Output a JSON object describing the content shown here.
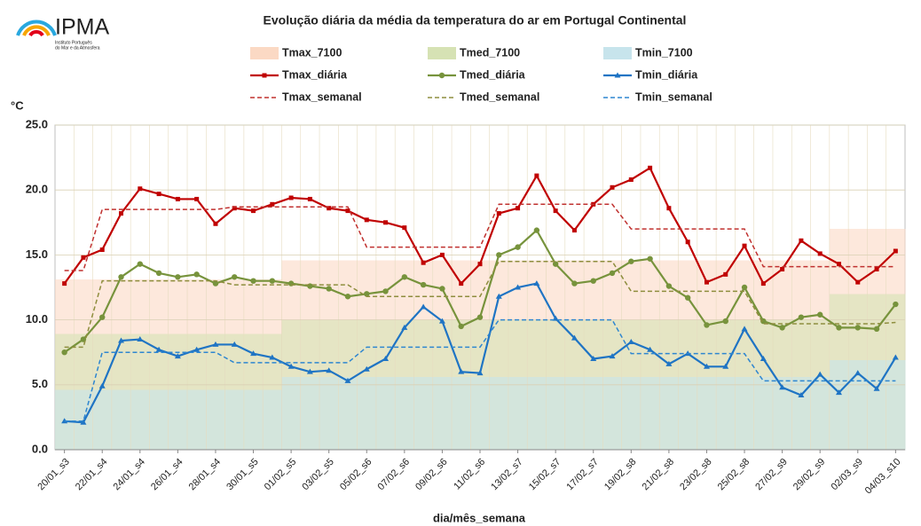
{
  "logo": {
    "name": "IPMA",
    "subtitle_1": "Instituto Português",
    "subtitle_2": "do Mar e da Atmosfera"
  },
  "chart_data": {
    "type": "line",
    "title": "Evolução diária da média da temperatura do ar em Portugal Continental",
    "y_label": "°C",
    "x_label": "dia/mês_semana",
    "categories": [
      "20/01_s3",
      null,
      "22/01_s4",
      null,
      "24/01_s4",
      null,
      "26/01_s4",
      null,
      "28/01_s4",
      null,
      "30/01_s5",
      null,
      "01/02_s5",
      null,
      "03/02_s5",
      null,
      "05/02_s6",
      null,
      "07/02_s6",
      null,
      "09/02_s6",
      null,
      "11/02_s6",
      null,
      "13/02_s7",
      null,
      "15/02_s7",
      null,
      "17/02_s7",
      null,
      "19/02_s8",
      null,
      "21/02_s8",
      null,
      "23/02_s8",
      null,
      "25/02_s8",
      null,
      "27/02_s9",
      null,
      "29/02_s9",
      null,
      "02/03_s9",
      null,
      "04/03_s10"
    ],
    "ylim": [
      0,
      25
    ],
    "yticks": [
      {
        "value": 0,
        "label": "0.0"
      },
      {
        "value": 5,
        "label": "5.0"
      },
      {
        "value": 10,
        "label": "10.0"
      },
      {
        "value": 15,
        "label": "15.0"
      },
      {
        "value": 20,
        "label": "20.0"
      },
      {
        "value": 25,
        "label": "25.0"
      }
    ],
    "grid": true,
    "series": [
      {
        "name": "Tmax_7100",
        "style": "band",
        "color": "#fbd9c4",
        "values": [
          13.1,
          13.1,
          13.1,
          13.1,
          13.1,
          13.1,
          13.1,
          13.1,
          13.1,
          13.1,
          13.1,
          13.1,
          14.6,
          14.6,
          14.6,
          14.6,
          14.6,
          14.6,
          14.6,
          14.6,
          14.6,
          14.6,
          14.6,
          14.6,
          14.6,
          14.6,
          14.6,
          14.6,
          14.6,
          14.6,
          14.6,
          14.6,
          14.6,
          14.6,
          14.6,
          14.6,
          14.6,
          14.6,
          14.6,
          14.6,
          14.6,
          17.0,
          17.0,
          17.0,
          17.0
        ]
      },
      {
        "name": "Tmed_7100",
        "style": "band",
        "color": "#d6e2b4",
        "values": [
          8.9,
          8.9,
          8.9,
          8.9,
          8.9,
          8.9,
          8.9,
          8.9,
          8.9,
          8.9,
          8.9,
          8.9,
          10.0,
          10.0,
          10.0,
          10.0,
          10.0,
          10.0,
          10.0,
          10.0,
          10.0,
          10.0,
          10.0,
          10.0,
          10.0,
          10.0,
          10.0,
          10.0,
          10.0,
          10.0,
          10.0,
          10.0,
          10.0,
          10.0,
          10.0,
          10.0,
          10.0,
          10.0,
          10.0,
          10.0,
          10.0,
          12.0,
          12.0,
          12.0,
          12.0
        ]
      },
      {
        "name": "Tmin_7100",
        "style": "band",
        "color": "#c7e4ec",
        "values": [
          4.6,
          4.6,
          4.6,
          4.6,
          4.6,
          4.6,
          4.6,
          4.6,
          4.6,
          4.6,
          4.6,
          4.6,
          5.6,
          5.6,
          5.6,
          5.6,
          5.6,
          5.6,
          5.6,
          5.6,
          5.6,
          5.6,
          5.6,
          5.6,
          5.6,
          5.6,
          5.6,
          5.6,
          5.6,
          5.6,
          5.6,
          5.6,
          5.6,
          5.6,
          5.6,
          5.6,
          5.6,
          5.6,
          5.6,
          5.6,
          5.6,
          6.9,
          6.9,
          6.9,
          6.9
        ]
      },
      {
        "name": "Tmax_diária",
        "style": "line",
        "marker": "square",
        "color": "#c00000",
        "values": [
          12.8,
          14.8,
          15.4,
          18.2,
          20.1,
          19.7,
          19.3,
          19.3,
          17.4,
          18.6,
          18.4,
          18.9,
          19.4,
          19.3,
          18.6,
          18.4,
          17.7,
          17.5,
          17.1,
          14.4,
          15.0,
          12.8,
          14.3,
          18.2,
          18.6,
          21.1,
          18.4,
          16.9,
          18.9,
          20.2,
          20.8,
          21.7,
          18.6,
          16.0,
          12.9,
          13.5,
          15.7,
          12.8,
          13.9,
          16.1,
          15.1,
          14.3,
          12.9,
          13.9,
          15.3
        ]
      },
      {
        "name": "Tmed_diária",
        "style": "line",
        "marker": "circle",
        "color": "#77933c",
        "values": [
          7.5,
          8.5,
          10.2,
          13.3,
          14.3,
          13.6,
          13.3,
          13.5,
          12.8,
          13.3,
          13.0,
          13.0,
          12.8,
          12.6,
          12.4,
          11.8,
          12.0,
          12.2,
          13.3,
          12.7,
          12.4,
          9.5,
          10.2,
          15.0,
          15.6,
          16.9,
          14.3,
          12.8,
          13.0,
          13.6,
          14.5,
          14.7,
          12.6,
          11.7,
          9.6,
          9.9,
          12.5,
          9.9,
          9.4,
          10.2,
          10.4,
          9.4,
          9.4,
          9.3,
          11.2
        ]
      },
      {
        "name": "Tmin_diária",
        "style": "line",
        "marker": "triangle",
        "color": "#1f74c4",
        "values": [
          2.2,
          2.1,
          4.9,
          8.4,
          8.5,
          7.7,
          7.2,
          7.7,
          8.1,
          8.1,
          7.4,
          7.1,
          6.4,
          6.0,
          6.1,
          5.3,
          6.2,
          7.0,
          9.4,
          11.0,
          9.9,
          6.0,
          5.9,
          11.8,
          12.5,
          12.8,
          10.1,
          8.6,
          7.0,
          7.2,
          8.3,
          7.7,
          6.6,
          7.4,
          6.4,
          6.4,
          9.3,
          7.0,
          4.8,
          4.2,
          5.8,
          4.4,
          5.9,
          4.7,
          7.1
        ]
      },
      {
        "name": "Tmax_semanal",
        "style": "dashed",
        "color": "#c0312f",
        "values": [
          13.8,
          13.8,
          18.5,
          18.5,
          18.5,
          18.5,
          18.5,
          18.5,
          18.5,
          18.7,
          18.7,
          18.7,
          18.7,
          18.7,
          18.7,
          18.7,
          15.6,
          15.6,
          15.6,
          15.6,
          15.6,
          15.6,
          15.6,
          18.9,
          18.9,
          18.9,
          18.9,
          18.9,
          18.9,
          18.9,
          17.0,
          17.0,
          17.0,
          17.0,
          17.0,
          17.0,
          17.0,
          14.1,
          14.1,
          14.1,
          14.1,
          14.1,
          14.1,
          14.1,
          14.1
        ]
      },
      {
        "name": "Tmed_semanal",
        "style": "dashed",
        "color": "#8e8e3e",
        "values": [
          7.9,
          7.9,
          13.0,
          13.0,
          13.0,
          13.0,
          13.0,
          13.0,
          13.0,
          12.7,
          12.7,
          12.7,
          12.7,
          12.7,
          12.7,
          12.7,
          11.8,
          11.8,
          11.8,
          11.8,
          11.8,
          11.8,
          11.8,
          14.5,
          14.5,
          14.5,
          14.5,
          14.5,
          14.5,
          14.5,
          12.2,
          12.2,
          12.2,
          12.2,
          12.2,
          12.2,
          12.2,
          9.7,
          9.7,
          9.7,
          9.7,
          9.7,
          9.7,
          9.7,
          9.8
        ]
      },
      {
        "name": "Tmin_semanal",
        "style": "dashed",
        "color": "#2e86d0",
        "values": [
          2.2,
          2.2,
          7.5,
          7.5,
          7.5,
          7.5,
          7.5,
          7.5,
          7.5,
          6.7,
          6.7,
          6.7,
          6.7,
          6.7,
          6.7,
          6.7,
          7.9,
          7.9,
          7.9,
          7.9,
          7.9,
          7.9,
          7.9,
          10.0,
          10.0,
          10.0,
          10.0,
          10.0,
          10.0,
          10.0,
          7.4,
          7.4,
          7.4,
          7.4,
          7.4,
          7.4,
          7.4,
          5.3,
          5.3,
          5.3,
          5.3,
          5.3,
          5.3,
          5.3,
          5.3
        ]
      }
    ]
  }
}
